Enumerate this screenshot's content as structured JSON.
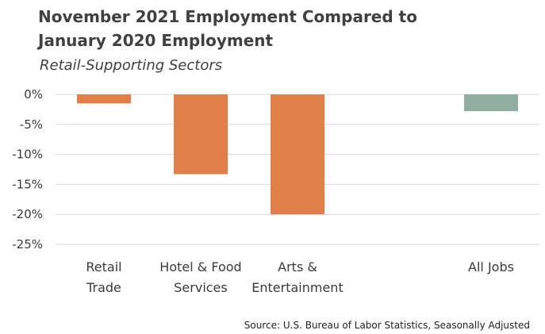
{
  "chart_data": {
    "type": "bar",
    "title_lines": [
      "November 2021 Employment Compared to",
      "January 2020 Employment"
    ],
    "subtitle": "Retail-Supporting Sectors",
    "source": "Source: U.S. Bureau of Labor Statistics, Seasonally Adjusted",
    "categories": [
      {
        "label_lines": [
          "Retail",
          "Trade"
        ],
        "value": -1.5,
        "color": "#E07F49"
      },
      {
        "label_lines": [
          "Hotel & Food",
          "Services"
        ],
        "value": -13.3,
        "color": "#E07F49"
      },
      {
        "label_lines": [
          "Arts &",
          "Entertainment"
        ],
        "value": -20.0,
        "color": "#E07F49"
      },
      {
        "label_lines": [
          ""
        ],
        "value": null,
        "color": "#E07F49"
      },
      {
        "label_lines": [
          "All Jobs"
        ],
        "value": -2.8,
        "color": "#8FAE9F"
      }
    ],
    "yticks": [
      "0%",
      "-5%",
      "-10%",
      "-15%",
      "-20%",
      "-25%"
    ],
    "ytick_values": [
      0,
      -5,
      -10,
      -15,
      -20,
      -25
    ],
    "ylim": [
      -25,
      0
    ],
    "grid": true
  }
}
